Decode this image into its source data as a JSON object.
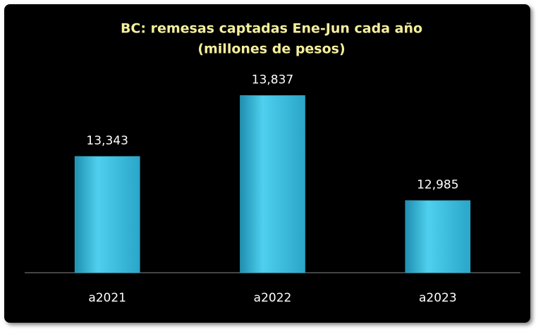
{
  "chart_data": {
    "type": "bar",
    "title": [
      "BC: remesas captadas Ene-Jun cada año",
      "(millones de pesos)"
    ],
    "categories": [
      "a2021",
      "a2022",
      "a2023"
    ],
    "values": [
      13343,
      13837,
      12985
    ],
    "value_labels": [
      "13,343",
      "13,837",
      "12,985"
    ],
    "color": "#3cc0e0",
    "ylim": [
      12400,
      14000
    ]
  }
}
